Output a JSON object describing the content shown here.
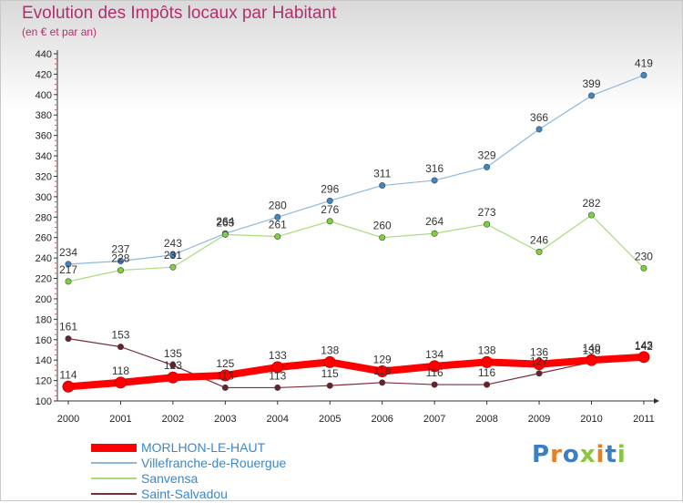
{
  "header": {
    "title": "Evolution des Impôts locaux par Habitant",
    "subtitle": "(en € et par an)"
  },
  "logo": {
    "text": "Proxiti",
    "letter_colors": [
      "#3a7fc4",
      "#e67e22",
      "#3a7fc4",
      "#8ac63f",
      "#e67e22",
      "#3a7fc4",
      "#8ac63f"
    ]
  },
  "chart_data": {
    "type": "line",
    "x": [
      "2000",
      "2001",
      "2002",
      "2003",
      "2004",
      "2005",
      "2006",
      "2007",
      "2008",
      "2009",
      "2010",
      "2011"
    ],
    "ylim": [
      100,
      440
    ],
    "yticks": [
      100,
      120,
      140,
      160,
      180,
      200,
      220,
      240,
      260,
      280,
      300,
      320,
      340,
      360,
      380,
      400,
      420,
      440
    ],
    "grid": false,
    "legend_position": "bottom-left",
    "series": [
      {
        "name": "MORLHON-LE-HAUT",
        "values": [
          114,
          118,
          123,
          125,
          133,
          138,
          129,
          134,
          138,
          136,
          140,
          143
        ],
        "color": "#ff0000",
        "marker_color": "#e22020"
      },
      {
        "name": "Villefranche-de-Rouergue",
        "values": [
          234,
          237,
          243,
          264,
          280,
          296,
          311,
          316,
          329,
          366,
          399,
          419
        ],
        "color": "#8db8de",
        "marker_color": "#3d87c8"
      },
      {
        "name": "Sanvensa",
        "values": [
          217,
          228,
          231,
          263,
          261,
          276,
          260,
          264,
          273,
          246,
          282,
          230
        ],
        "color": "#a6dc7a",
        "marker_color": "#7ed03f"
      },
      {
        "name": "Saint-Salvadou",
        "values": [
          161,
          153,
          135,
          113,
          113,
          115,
          118,
          116,
          116,
          127,
          138,
          142
        ],
        "color": "#7a2e3a",
        "marker_color": "#6b1e2c"
      }
    ]
  }
}
